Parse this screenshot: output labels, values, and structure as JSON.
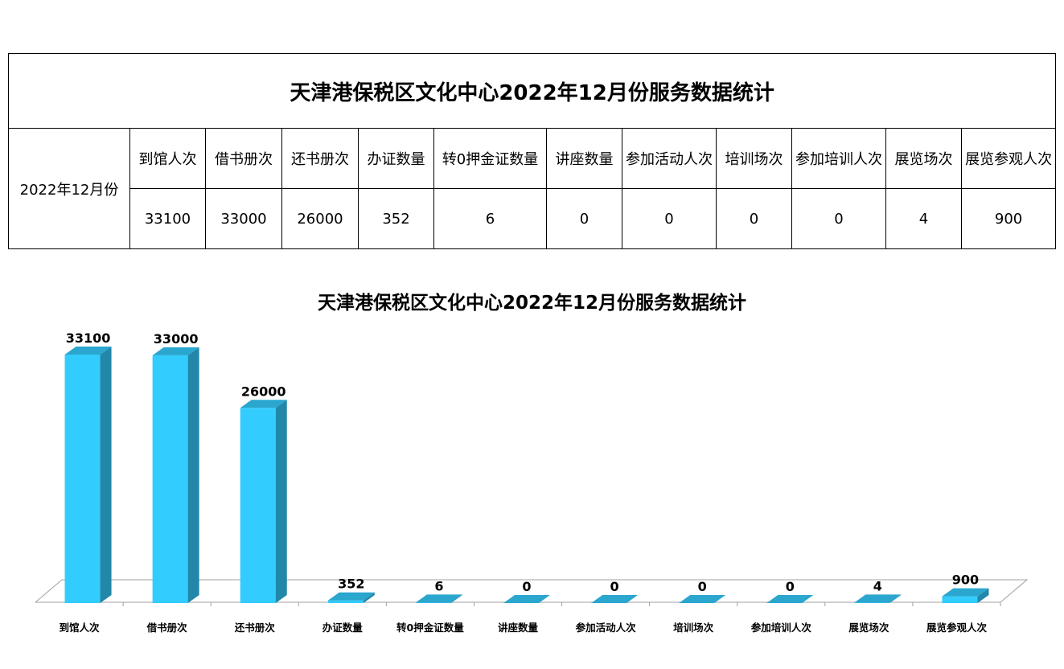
{
  "table": {
    "title": "天津港保税区文化中心2022年12月份服务数据统计",
    "period": "2022年12月份",
    "headers": [
      "到馆人次",
      "借书册次",
      "还书册次",
      "办证数量",
      "转0押金证数量",
      "讲座数量",
      "参加活动人次",
      "培训场次",
      "参加培训人次",
      "展览场次",
      "展览参观人次"
    ],
    "values": [
      "33100",
      "33000",
      "26000",
      "352",
      "6",
      "0",
      "0",
      "0",
      "0",
      "4",
      "900"
    ]
  },
  "chart_data": {
    "type": "bar",
    "title": "天津港保税区文化中心2022年12月份服务数据统计",
    "categories": [
      "到馆人次",
      "借书册次",
      "还书册次",
      "办证数量",
      "转0押金证数量",
      "讲座数量",
      "参加活动人次",
      "培训场次",
      "参加培训人次",
      "展览场次",
      "展览参观人次"
    ],
    "values": [
      33100,
      33000,
      26000,
      352,
      6,
      0,
      0,
      0,
      0,
      4,
      900
    ],
    "xlabel": "",
    "ylabel": "",
    "grid": false,
    "legend": "none",
    "data_labels": true,
    "colors": {
      "front": "#33ccff",
      "side": "#2287a8",
      "top": "#2aa6cf",
      "floor_line": "#a0a0a0"
    }
  }
}
